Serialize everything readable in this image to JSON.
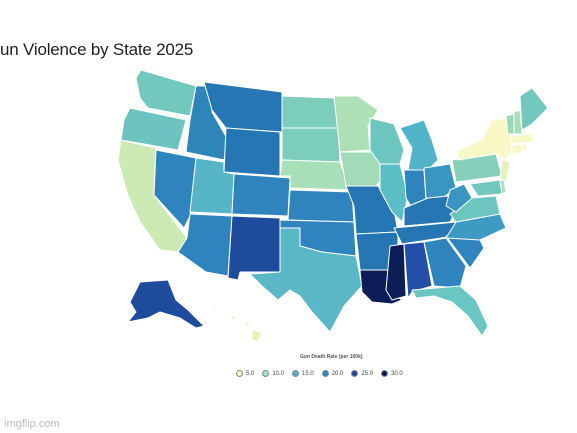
{
  "title": "un Violence by State 2025",
  "legend": {
    "title": "Gun Death Rate (per 100k)",
    "items": [
      {
        "label": "5.0",
        "color": "#f6f9c4"
      },
      {
        "label": "10.0",
        "color": "#a8dfc1"
      },
      {
        "label": "15.0",
        "color": "#4fb6c5"
      },
      {
        "label": "20.0",
        "color": "#2f84bd"
      },
      {
        "label": "25.0",
        "color": "#1e4b9b"
      },
      {
        "label": "30.0",
        "color": "#0c1d57"
      }
    ]
  },
  "watermark": "imgflip.com",
  "colors": {
    "background": "#ffffff",
    "state_border": "#ffffff"
  }
}
